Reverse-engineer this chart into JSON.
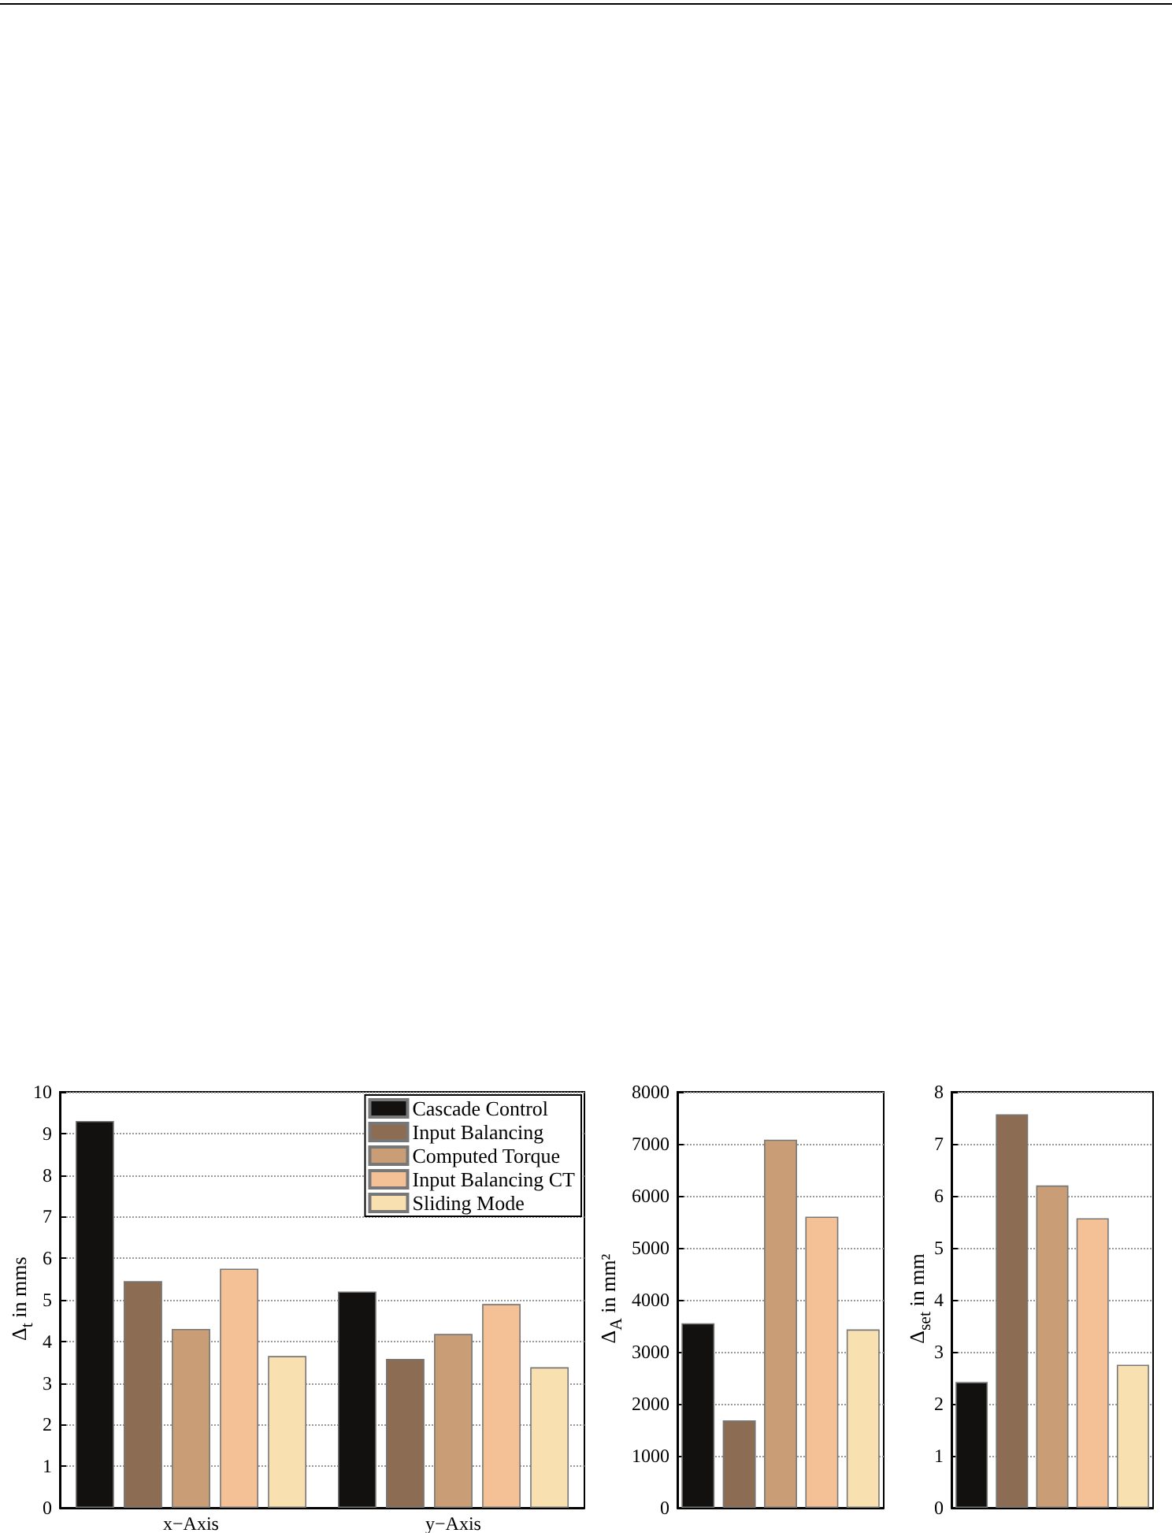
{
  "chart_data": [
    {
      "type": "bar",
      "categories": [
        "x−Axis",
        "y−Axis"
      ],
      "ylabel": "Δ$_{t}$ in mms",
      "ylim": [
        0,
        10
      ],
      "yticks": [
        0,
        1,
        2,
        3,
        4,
        5,
        6,
        7,
        8,
        9,
        10
      ],
      "grid": "y",
      "legend": "top right",
      "series": [
        {
          "name": "Cascade Control",
          "color": "#121110",
          "values": [
            9.3,
            5.2
          ]
        },
        {
          "name": "Input Balancing",
          "color": "#8c6d54",
          "values": [
            5.45,
            3.58
          ]
        },
        {
          "name": "Computed Torque",
          "color": "#c99e76",
          "values": [
            4.3,
            4.18
          ]
        },
        {
          "name": "Input Balancing CT",
          "color": "#f4c095",
          "values": [
            5.75,
            4.9
          ]
        },
        {
          "name": "Sliding Mode",
          "color": "#f9e0b0",
          "values": [
            3.65,
            3.38
          ]
        }
      ]
    },
    {
      "type": "bar",
      "categories": [
        null,
        null,
        null,
        null,
        null
      ],
      "ylabel": "Δ$_{A}$ in mm²",
      "ylim": [
        0,
        8000
      ],
      "yticks": [
        0,
        1000,
        2000,
        3000,
        4000,
        5000,
        6000,
        7000,
        8000
      ],
      "grid": "y",
      "values": [
        3550,
        1680,
        7080,
        5600,
        3430
      ],
      "colors": [
        "#121110",
        "#8c6d54",
        "#c99e76",
        "#f4c095",
        "#f9e0b0"
      ]
    },
    {
      "type": "bar",
      "categories": [
        null,
        null,
        null,
        null,
        null
      ],
      "ylabel": "Δ$_{set}$ in mm",
      "ylim": [
        0,
        8
      ],
      "yticks": [
        0,
        1,
        2,
        3,
        4,
        5,
        6,
        7,
        8
      ],
      "grid": "y",
      "values": [
        2.42,
        7.57,
        6.2,
        5.57,
        2.75
      ],
      "colors": [
        "#121110",
        "#8c6d54",
        "#c99e76",
        "#f4c095",
        "#f9e0b0"
      ]
    }
  ]
}
